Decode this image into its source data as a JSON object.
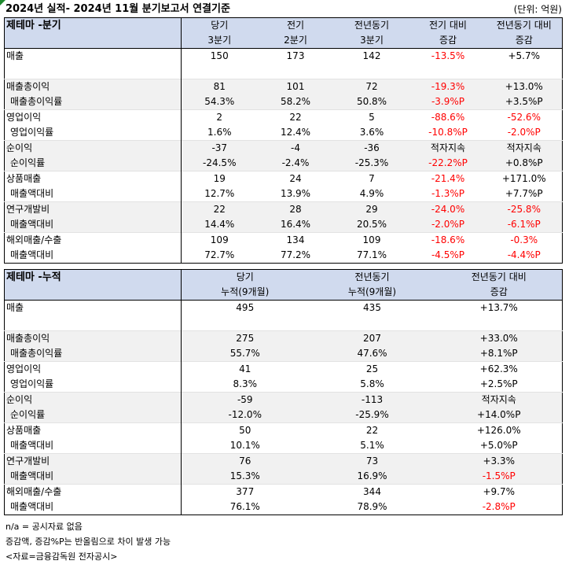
{
  "title": "2024년 실적- 2024년 11월 분기보고서 연결기준",
  "unit": "(단위: 억원)",
  "quarterly": {
    "header": {
      "section": "제테마 -분기",
      "cols": [
        {
          "top": "당기",
          "bottom": "3분기"
        },
        {
          "top": "전기",
          "bottom": "2분기"
        },
        {
          "top": "전년동기",
          "bottom": "3분기"
        },
        {
          "top": "전기 대비",
          "bottom": "증감"
        },
        {
          "top": "전년동기 대비",
          "bottom": "증감"
        }
      ]
    },
    "groups": [
      {
        "rows": [
          {
            "label": "매출",
            "sub": false,
            "v": [
              "150",
              "173",
              "142",
              "-13.5%",
              "+5.7%"
            ],
            "neg": [
              false,
              false,
              false,
              true,
              false
            ]
          },
          {
            "label": "",
            "sub": false,
            "v": [
              "",
              "",
              "",
              "",
              ""
            ],
            "neg": [
              false,
              false,
              false,
              false,
              false
            ]
          }
        ]
      },
      {
        "rows": [
          {
            "label": "매출총이익",
            "sub": false,
            "v": [
              "81",
              "101",
              "72",
              "-19.3%",
              "+13.0%"
            ],
            "neg": [
              false,
              false,
              false,
              true,
              false
            ]
          },
          {
            "label": "매출총이익률",
            "sub": true,
            "v": [
              "54.3%",
              "58.2%",
              "50.8%",
              "-3.9%P",
              "+3.5%P"
            ],
            "neg": [
              false,
              false,
              false,
              true,
              false
            ]
          }
        ]
      },
      {
        "rows": [
          {
            "label": "영업이익",
            "sub": false,
            "v": [
              "2",
              "22",
              "5",
              "-88.6%",
              "-52.6%"
            ],
            "neg": [
              false,
              false,
              false,
              true,
              true
            ]
          },
          {
            "label": "영업이익률",
            "sub": true,
            "v": [
              "1.6%",
              "12.4%",
              "3.6%",
              "-10.8%P",
              "-2.0%P"
            ],
            "neg": [
              false,
              false,
              false,
              true,
              true
            ]
          }
        ]
      },
      {
        "rows": [
          {
            "label": "순이익",
            "sub": false,
            "v": [
              "-37",
              "-4",
              "-36",
              "적자지속",
              "적자지속"
            ],
            "neg": [
              false,
              false,
              false,
              false,
              false
            ]
          },
          {
            "label": "순이익률",
            "sub": true,
            "v": [
              "-24.5%",
              "-2.4%",
              "-25.3%",
              "-22.2%P",
              "+0.8%P"
            ],
            "neg": [
              false,
              false,
              false,
              true,
              false
            ]
          }
        ]
      },
      {
        "rows": [
          {
            "label": "상품매출",
            "sub": false,
            "v": [
              "19",
              "24",
              "7",
              "-21.4%",
              "+171.0%"
            ],
            "neg": [
              false,
              false,
              false,
              true,
              false
            ]
          },
          {
            "label": "매출액대비",
            "sub": true,
            "v": [
              "12.7%",
              "13.9%",
              "4.9%",
              "-1.3%P",
              "+7.7%P"
            ],
            "neg": [
              false,
              false,
              false,
              true,
              false
            ]
          }
        ]
      },
      {
        "rows": [
          {
            "label": "연구개발비",
            "sub": false,
            "v": [
              "22",
              "28",
              "29",
              "-24.0%",
              "-25.8%"
            ],
            "neg": [
              false,
              false,
              false,
              true,
              true
            ]
          },
          {
            "label": "매출액대비",
            "sub": true,
            "v": [
              "14.4%",
              "16.4%",
              "20.5%",
              "-2.0%P",
              "-6.1%P"
            ],
            "neg": [
              false,
              false,
              false,
              true,
              true
            ]
          }
        ]
      },
      {
        "rows": [
          {
            "label": "해외매출/수출",
            "sub": false,
            "v": [
              "109",
              "134",
              "109",
              "-18.6%",
              "-0.3%"
            ],
            "neg": [
              false,
              false,
              false,
              true,
              true
            ]
          },
          {
            "label": "매출액대비",
            "sub": true,
            "v": [
              "72.7%",
              "77.2%",
              "77.1%",
              "-4.5%P",
              "-4.4%P"
            ],
            "neg": [
              false,
              false,
              false,
              true,
              true
            ]
          }
        ]
      }
    ]
  },
  "cumulative": {
    "header": {
      "section": "제테마 -누적",
      "cols": [
        {
          "top": "당기",
          "bottom": "누적(9개월)"
        },
        {
          "top": "전년동기",
          "bottom": "누적(9개월)"
        },
        {
          "top": "전년동기 대비",
          "bottom": "증감"
        }
      ]
    },
    "groups": [
      {
        "rows": [
          {
            "label": "매출",
            "sub": false,
            "v": [
              "495",
              "435",
              "+13.7%"
            ],
            "neg": [
              false,
              false,
              false
            ]
          },
          {
            "label": "",
            "sub": false,
            "v": [
              "",
              "",
              ""
            ],
            "neg": [
              false,
              false,
              false
            ]
          }
        ]
      },
      {
        "rows": [
          {
            "label": "매출총이익",
            "sub": false,
            "v": [
              "275",
              "207",
              "+33.0%"
            ],
            "neg": [
              false,
              false,
              false
            ]
          },
          {
            "label": "매출총이익률",
            "sub": true,
            "v": [
              "55.7%",
              "47.6%",
              "+8.1%P"
            ],
            "neg": [
              false,
              false,
              false
            ]
          }
        ]
      },
      {
        "rows": [
          {
            "label": "영업이익",
            "sub": false,
            "v": [
              "41",
              "25",
              "+62.3%"
            ],
            "neg": [
              false,
              false,
              false
            ]
          },
          {
            "label": "영업이익률",
            "sub": true,
            "v": [
              "8.3%",
              "5.8%",
              "+2.5%P"
            ],
            "neg": [
              false,
              false,
              false
            ]
          }
        ]
      },
      {
        "rows": [
          {
            "label": "순이익",
            "sub": false,
            "v": [
              "-59",
              "-113",
              "적자지속"
            ],
            "neg": [
              false,
              false,
              false
            ]
          },
          {
            "label": "순이익률",
            "sub": true,
            "v": [
              "-12.0%",
              "-25.9%",
              "+14.0%P"
            ],
            "neg": [
              false,
              false,
              false
            ]
          }
        ]
      },
      {
        "rows": [
          {
            "label": "상품매출",
            "sub": false,
            "v": [
              "50",
              "22",
              "+126.0%"
            ],
            "neg": [
              false,
              false,
              false
            ]
          },
          {
            "label": "매출액대비",
            "sub": true,
            "v": [
              "10.1%",
              "5.1%",
              "+5.0%P"
            ],
            "neg": [
              false,
              false,
              false
            ]
          }
        ]
      },
      {
        "rows": [
          {
            "label": "연구개발비",
            "sub": false,
            "v": [
              "76",
              "73",
              "+3.3%"
            ],
            "neg": [
              false,
              false,
              false
            ]
          },
          {
            "label": "매출액대비",
            "sub": true,
            "v": [
              "15.3%",
              "16.9%",
              "-1.5%P"
            ],
            "neg": [
              false,
              false,
              true
            ]
          }
        ]
      },
      {
        "rows": [
          {
            "label": "해외매출/수출",
            "sub": false,
            "v": [
              "377",
              "344",
              "+9.7%"
            ],
            "neg": [
              false,
              false,
              false
            ]
          },
          {
            "label": "매출액대비",
            "sub": true,
            "v": [
              "76.1%",
              "78.9%",
              "-2.8%P"
            ],
            "neg": [
              false,
              false,
              true
            ]
          }
        ]
      }
    ]
  },
  "notes": [
    "n/a = 공시자료 없음",
    "증감액, 증감%P는 반올림으로 차이 발생 가능",
    "<자료=금융감독원 전자공시>"
  ]
}
